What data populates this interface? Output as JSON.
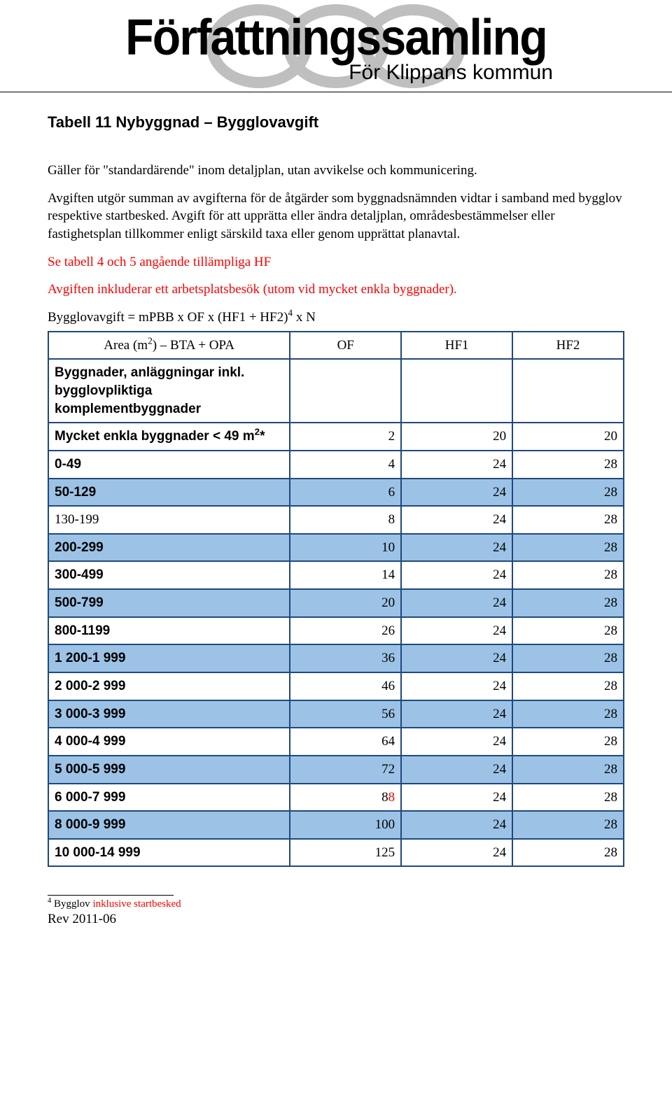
{
  "banner": {
    "title": "Författningssamling",
    "subtitle": "För Klippans kommun"
  },
  "doc": {
    "heading": "Tabell 11 Nybyggnad – Bygglovavgift",
    "p1": "Gäller för \"standardärende\" inom detaljplan, utan avvikelse och kommunicering.",
    "p2": "Avgiften utgör summan av avgifterna för de åtgärder som byggnadsnämnden vidtar i samband med bygglov respektive startbesked. Avgift för att upprätta eller ändra detaljplan, områdesbestämmelser eller fastighetsplan tillkommer enligt särskild taxa eller genom upprättat planavtal.",
    "p3": "Se tabell 4 och 5 angående tillämpliga HF",
    "p4": "Avgiften inkluderar ett arbetsplatsbesök (utom vid mycket enkla byggnader).",
    "formula_prefix": "Bygglovavgift = mPBB x OF x (HF1 + HF2)",
    "formula_sup": "4",
    "formula_suffix": " x N",
    "table": {
      "header_area_prefix": "Area (m",
      "header_area_sup": "2",
      "header_area_suffix": ") – BTA + OPA",
      "col_of": "OF",
      "col_hf1": "HF1",
      "col_hf2": "HF2",
      "subheader": "Byggnader, anläggningar inkl. bygglovpliktiga komplementbyggnader",
      "row0_label_prefix": "Mycket enkla byggnader < 49 m",
      "row0_label_sup": "2",
      "row0_label_suffix": "*",
      "rows": [
        {
          "label": "",
          "of": "2",
          "hf1": "20",
          "hf2": "20",
          "shaded": false,
          "bold": true,
          "special": true
        },
        {
          "label": "0-49",
          "of": "4",
          "hf1": "24",
          "hf2": "28",
          "shaded": false,
          "bold": true
        },
        {
          "label": "50-129",
          "of": "6",
          "hf1": "24",
          "hf2": "28",
          "shaded": true,
          "bold": true
        },
        {
          "label": "130-199",
          "of": "8",
          "hf1": "24",
          "hf2": "28",
          "shaded": false,
          "bold": false
        },
        {
          "label": "200-299",
          "of": "10",
          "hf1": "24",
          "hf2": "28",
          "shaded": true,
          "bold": true
        },
        {
          "label": "300-499",
          "of": "14",
          "hf1": "24",
          "hf2": "28",
          "shaded": false,
          "bold": true
        },
        {
          "label": "500-799",
          "of": "20",
          "hf1": "24",
          "hf2": "28",
          "shaded": true,
          "bold": true
        },
        {
          "label": "800-1199",
          "of": "26",
          "hf1": "24",
          "hf2": "28",
          "shaded": false,
          "bold": true
        },
        {
          "label": "1 200-1 999",
          "of": "36",
          "hf1": "24",
          "hf2": "28",
          "shaded": true,
          "bold": true
        },
        {
          "label": "2 000-2 999",
          "of": "46",
          "hf1": "24",
          "hf2": "28",
          "shaded": false,
          "bold": true
        },
        {
          "label": "3 000-3 999",
          "of": "56",
          "hf1": "24",
          "hf2": "28",
          "shaded": true,
          "bold": true
        },
        {
          "label": "4 000-4 999",
          "of": "64",
          "hf1": "24",
          "hf2": "28",
          "shaded": false,
          "bold": true
        },
        {
          "label": "5 000-5 999",
          "of": "72",
          "hf1": "24",
          "hf2": "28",
          "shaded": true,
          "bold": true
        },
        {
          "label": "6 000-7 999",
          "of_prefix": "8",
          "of_red": "8",
          "hf1": "24",
          "hf2": "28",
          "shaded": false,
          "bold": true,
          "mixed_of": true
        },
        {
          "label": "8 000-9 999",
          "of": "100",
          "hf1": "24",
          "hf2": "28",
          "shaded": true,
          "bold": true
        },
        {
          "label": "10 000-14 999",
          "of": "125",
          "hf1": "24",
          "hf2": "28",
          "shaded": false,
          "bold": true
        }
      ]
    },
    "footnote_sup": "4",
    "footnote_black": " Bygglov ",
    "footnote_red": "inklusive startbesked",
    "rev": "Rev 2011-06"
  },
  "style": {
    "shade_color": "#9cc3e6",
    "border_color": "#1f497d",
    "red": "#ff0000"
  }
}
